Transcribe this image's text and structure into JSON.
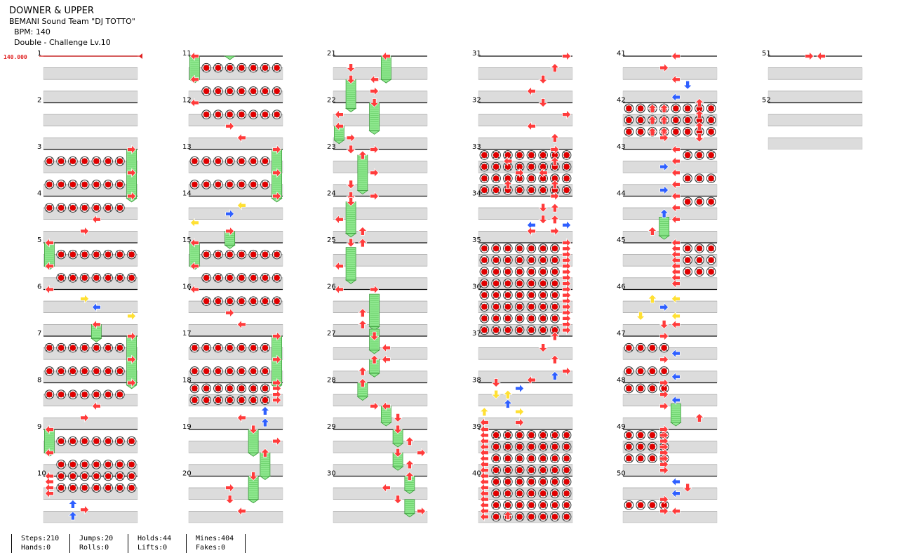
{
  "song": {
    "title": "DOWNER & UPPER",
    "artist": "BEMANI Sound Team \"DJ TOTTO\"",
    "bpm": "BPM: 140",
    "difficulty": "Double - Challenge Lv.10"
  },
  "bpm_marker": "140.000",
  "measures": [
    "1",
    "2",
    "3",
    "4",
    "5",
    "6",
    "7",
    "8",
    "9",
    "10",
    "11",
    "12",
    "13",
    "14",
    "15",
    "16",
    "17",
    "18",
    "19",
    "20",
    "21",
    "22",
    "23",
    "24",
    "25",
    "26",
    "27",
    "28",
    "29",
    "30",
    "31",
    "32",
    "33",
    "34",
    "35",
    "36",
    "37",
    "38",
    "39",
    "40",
    "41",
    "42",
    "43",
    "44",
    "45",
    "46",
    "47",
    "48",
    "49",
    "50",
    "51",
    "52"
  ],
  "stats": [
    {
      "a": "Steps:210",
      "b": "Hands:0"
    },
    {
      "a": "Jumps:20",
      "b": "Rolls:0"
    },
    {
      "a": "Holds:44",
      "b": "Lifts:0"
    },
    {
      "a": "Mines:404",
      "b": "Fakes:0"
    }
  ],
  "colors": {
    "quarter": "#ff3b3b",
    "eighth": "#2e5fff",
    "sixteenth": "#ffe033",
    "hold": "#8fe88f",
    "mine": "#e00000",
    "band": "#dcdcdc",
    "bpm": "#e02020"
  },
  "icons": [
    "arrow-left-icon",
    "arrow-down-icon",
    "arrow-up-icon",
    "arrow-right-icon",
    "mine-icon",
    "hold-body-icon"
  ]
}
